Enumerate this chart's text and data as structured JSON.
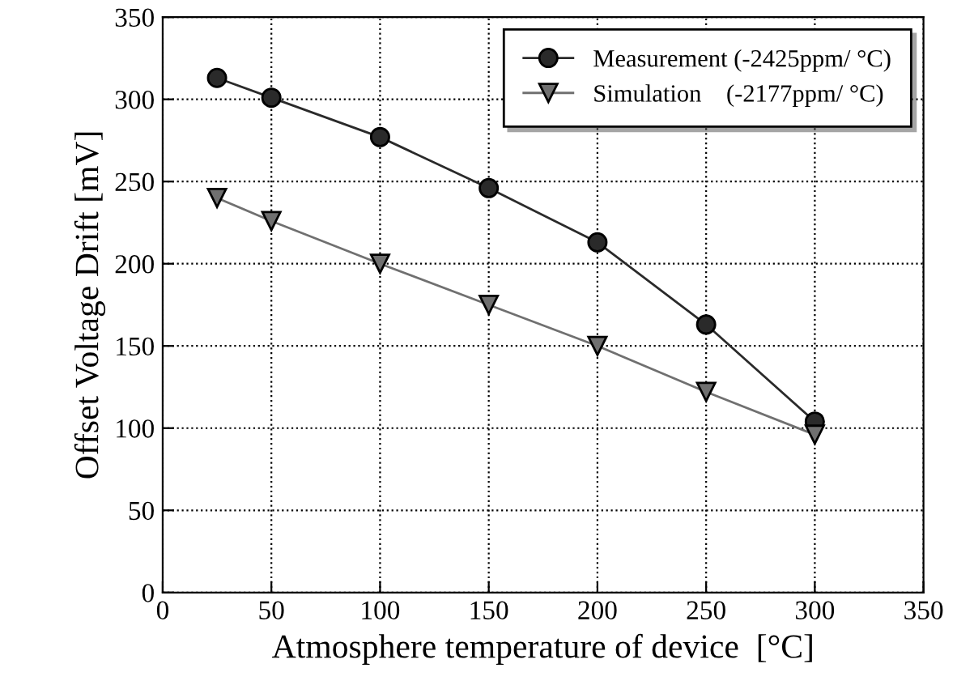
{
  "chart_data": {
    "type": "line",
    "xlabel": "Atmosphere temperature of device  [°C]",
    "ylabel": "Offset Voltage Drift [mV]",
    "x": [
      25,
      50,
      100,
      150,
      200,
      250,
      300
    ],
    "series": [
      {
        "name": "Measurement (-2425ppm/ °C)",
        "color": "#2a2a2a",
        "marker": "circle",
        "values": [
          313,
          301,
          277,
          246,
          213,
          163,
          104
        ]
      },
      {
        "name": "Simulation    (-2177ppm/ °C)",
        "color": "#707070",
        "marker": "triangle",
        "values": [
          240,
          226,
          200,
          175,
          150,
          122,
          96
        ]
      }
    ],
    "xlim": [
      0,
      350
    ],
    "xticks": [
      0,
      50,
      100,
      150,
      200,
      250,
      300,
      350
    ],
    "ylim": [
      0,
      350
    ],
    "yticks": [
      0,
      50,
      100,
      150,
      200,
      250,
      300,
      350
    ],
    "grid": true,
    "legend": "top right",
    "line_style": "solid"
  }
}
